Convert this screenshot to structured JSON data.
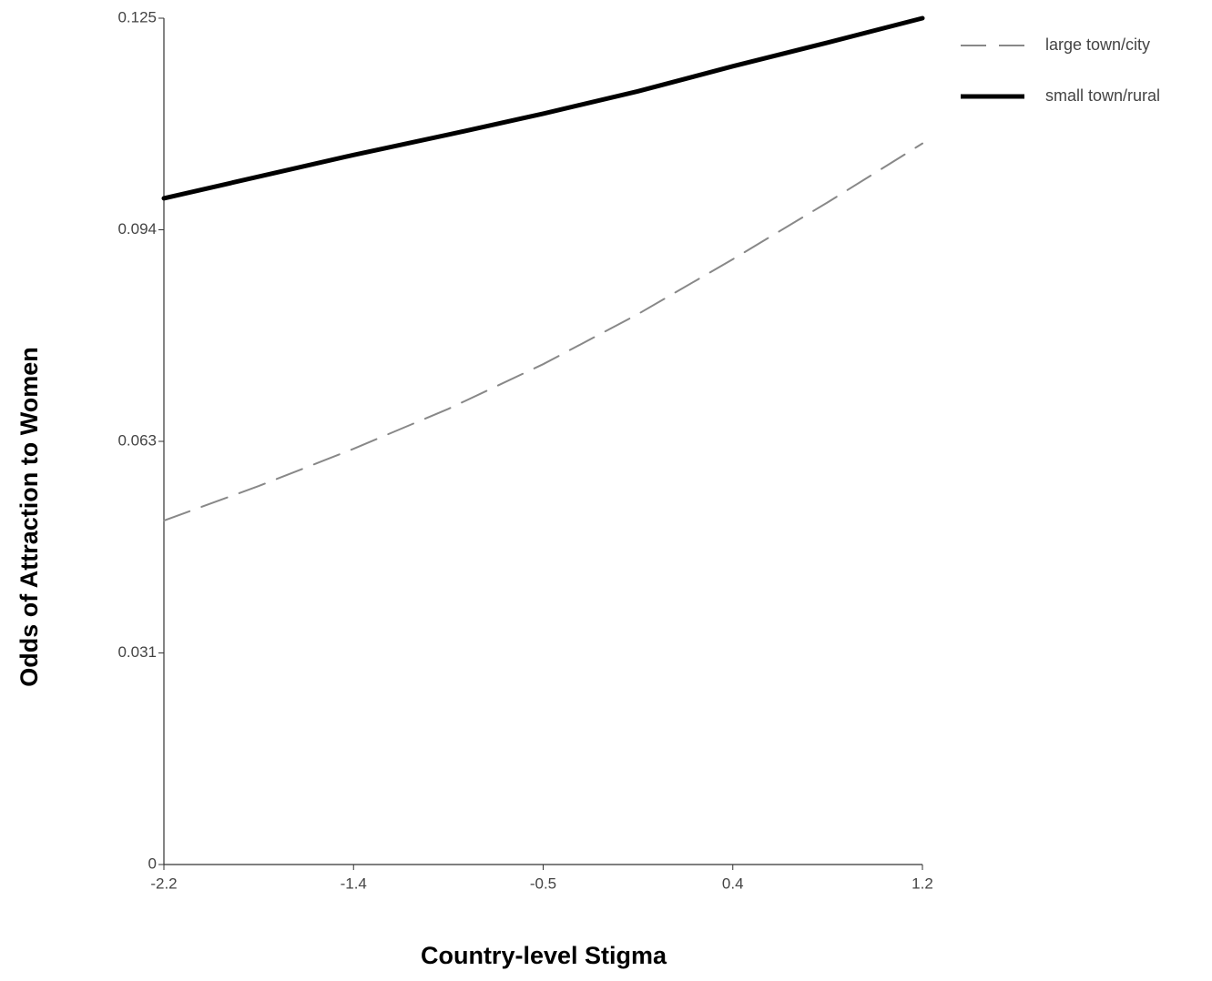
{
  "chart_data": {
    "type": "line",
    "xlabel": "Country-level Stigma",
    "ylabel": "Odds of Attraction to Women",
    "x": [
      -2.2,
      -1.775,
      -1.35,
      -0.925,
      -0.5,
      -0.075,
      0.35,
      0.775,
      1.2
    ],
    "series": [
      {
        "name": "large town/city",
        "color": "#888888",
        "dash": true,
        "values": [
          0.0508,
          0.0559,
          0.0614,
          0.0673,
          0.0739,
          0.0813,
          0.0894,
          0.0978,
          0.1065
        ]
      },
      {
        "name": "small town/rural",
        "color": "#000000",
        "dash": false,
        "values": [
          0.0984,
          0.1016,
          0.1048,
          0.1078,
          0.1109,
          0.1142,
          0.1179,
          0.1214,
          0.125
        ]
      }
    ],
    "xlim": [
      -2.2,
      1.2
    ],
    "xticks": [
      -2.2,
      {
        "value": -1.35,
        "label": "-1.4"
      },
      -0.5,
      {
        "value": 0.35,
        "label": "0.4"
      },
      1.2
    ],
    "ylim": [
      0,
      0.125
    ],
    "yticks": [
      0,
      {
        "value": 0.03125,
        "label": "0.031"
      },
      {
        "value": 0.0625,
        "label": "0.063"
      },
      {
        "value": 0.09375,
        "label": "0.094"
      },
      0.125
    ],
    "grid": false,
    "legend": "upper right"
  }
}
